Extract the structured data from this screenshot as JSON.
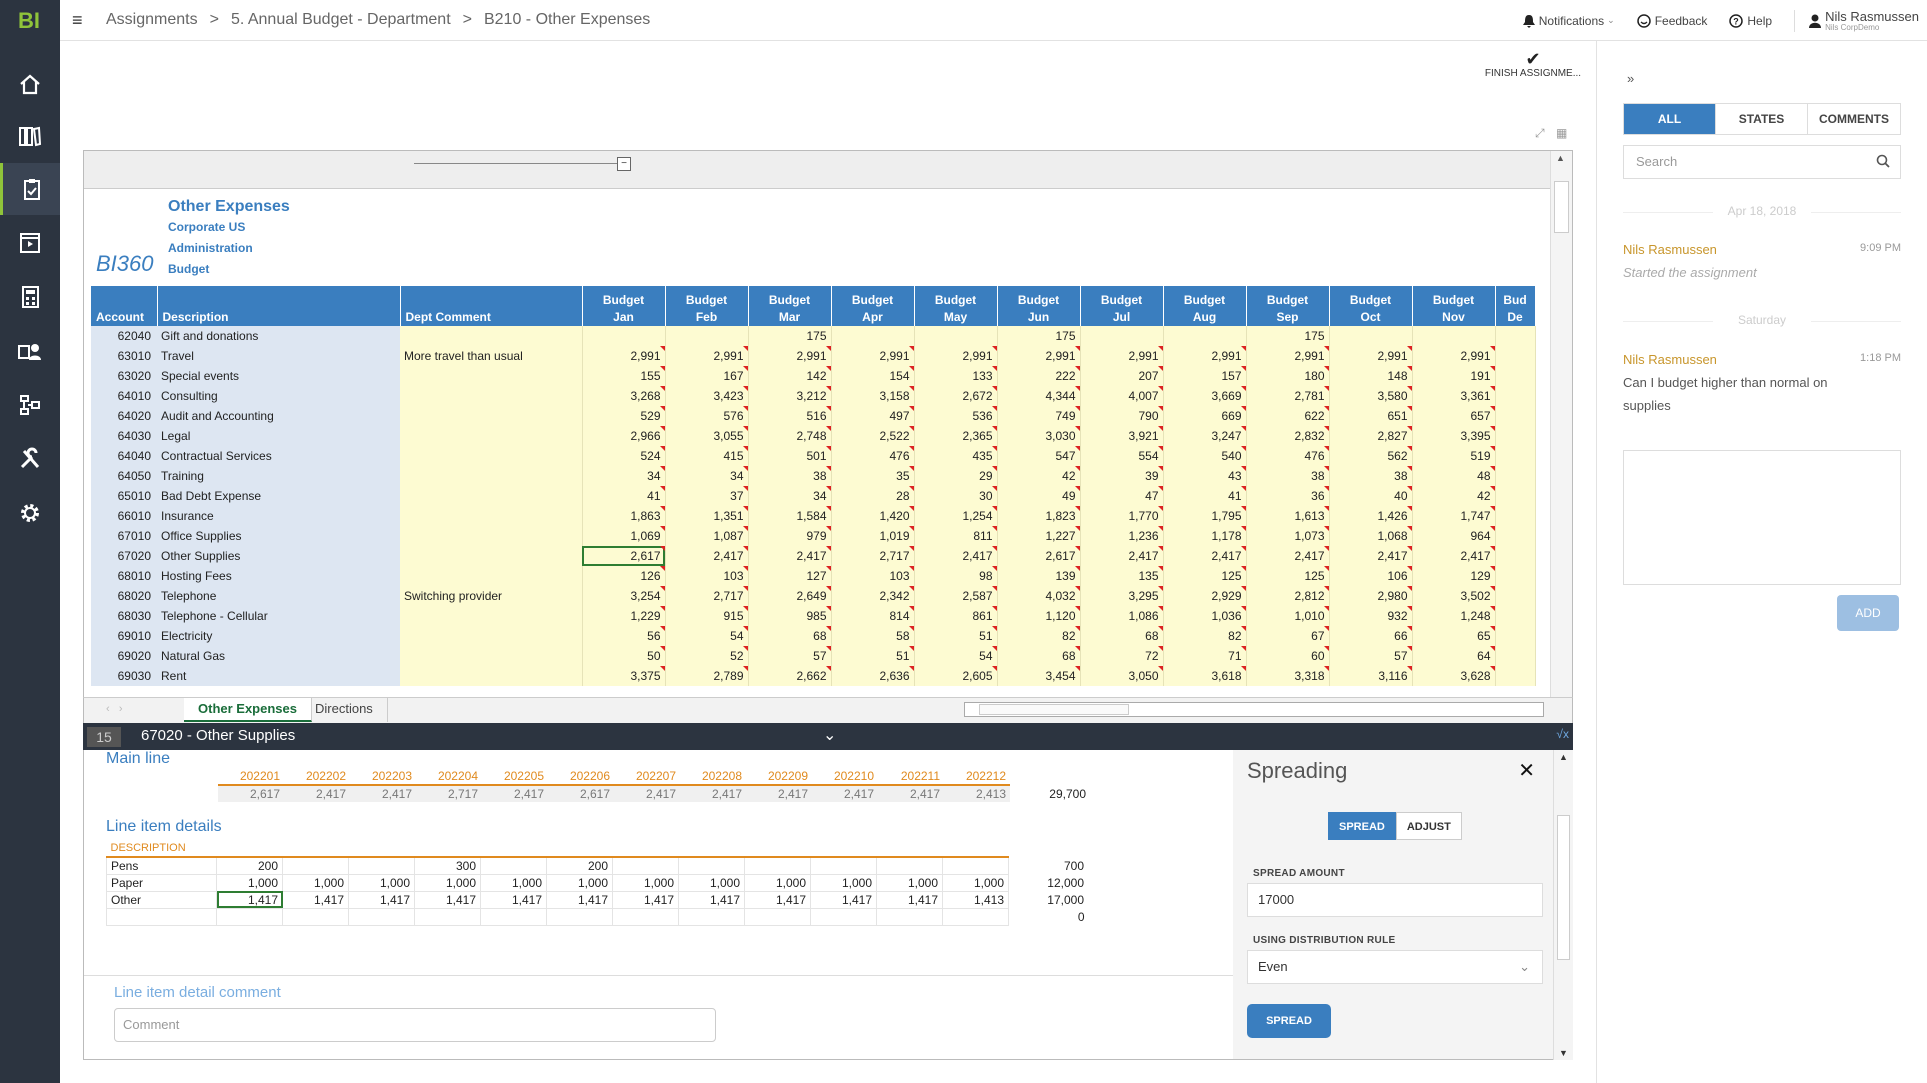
{
  "app": {
    "logo": "BI"
  },
  "topbar": {
    "breadcrumbs": [
      "Assignments",
      "5. Annual Budget - Department",
      "B210 - Other Expenses"
    ],
    "notifications": "Notifications",
    "feedback": "Feedback",
    "help": "Help",
    "user_name": "Nils Rasmussen",
    "user_company": "Nils CorpDemo"
  },
  "finish": {
    "label": "FINISH ASSIGNME..."
  },
  "report": {
    "title": "Other Expenses",
    "entity": "Corporate US",
    "department": "Administration",
    "scenario": "Budget",
    "logo_text": "BI360",
    "columns": {
      "account": "Account",
      "description": "Description",
      "comment": "Dept Comment",
      "months": [
        [
          "Budget",
          "Jan"
        ],
        [
          "Budget",
          "Feb"
        ],
        [
          "Budget",
          "Mar"
        ],
        [
          "Budget",
          "Apr"
        ],
        [
          "Budget",
          "May"
        ],
        [
          "Budget",
          "Jun"
        ],
        [
          "Budget",
          "Jul"
        ],
        [
          "Budget",
          "Aug"
        ],
        [
          "Budget",
          "Sep"
        ],
        [
          "Budget",
          "Oct"
        ],
        [
          "Budget",
          "Nov"
        ],
        [
          "Bud",
          "De"
        ]
      ]
    },
    "rows": [
      {
        "acct": "62040",
        "desc": "Gift and donations",
        "cmt": "",
        "v": [
          "",
          "",
          "175",
          "",
          "",
          "175",
          "",
          "",
          "175",
          "",
          "",
          ""
        ]
      },
      {
        "acct": "63010",
        "desc": "Travel",
        "cmt": "More travel than usual",
        "v": [
          "2,991",
          "2,991",
          "2,991",
          "2,991",
          "2,991",
          "2,991",
          "2,991",
          "2,991",
          "2,991",
          "2,991",
          "2,991",
          ""
        ]
      },
      {
        "acct": "63020",
        "desc": "Special events",
        "cmt": "",
        "v": [
          "155",
          "167",
          "142",
          "154",
          "133",
          "222",
          "207",
          "157",
          "180",
          "148",
          "191",
          ""
        ]
      },
      {
        "acct": "64010",
        "desc": "Consulting",
        "cmt": "",
        "v": [
          "3,268",
          "3,423",
          "3,212",
          "3,158",
          "2,672",
          "4,344",
          "4,007",
          "3,669",
          "2,781",
          "3,580",
          "3,361",
          ""
        ]
      },
      {
        "acct": "64020",
        "desc": "Audit and Accounting",
        "cmt": "",
        "v": [
          "529",
          "576",
          "516",
          "497",
          "536",
          "749",
          "790",
          "669",
          "622",
          "651",
          "657",
          ""
        ]
      },
      {
        "acct": "64030",
        "desc": "Legal",
        "cmt": "",
        "v": [
          "2,966",
          "3,055",
          "2,748",
          "2,522",
          "2,365",
          "3,030",
          "3,921",
          "3,247",
          "2,832",
          "2,827",
          "3,395",
          ""
        ]
      },
      {
        "acct": "64040",
        "desc": "Contractual Services",
        "cmt": "",
        "v": [
          "524",
          "415",
          "501",
          "476",
          "435",
          "547",
          "554",
          "540",
          "476",
          "562",
          "519",
          ""
        ]
      },
      {
        "acct": "64050",
        "desc": "Training",
        "cmt": "",
        "v": [
          "34",
          "34",
          "38",
          "35",
          "29",
          "42",
          "39",
          "43",
          "38",
          "38",
          "48",
          ""
        ]
      },
      {
        "acct": "65010",
        "desc": "Bad Debt Expense",
        "cmt": "",
        "v": [
          "41",
          "37",
          "34",
          "28",
          "30",
          "49",
          "47",
          "41",
          "36",
          "40",
          "42",
          ""
        ]
      },
      {
        "acct": "66010",
        "desc": "Insurance",
        "cmt": "",
        "v": [
          "1,863",
          "1,351",
          "1,584",
          "1,420",
          "1,254",
          "1,823",
          "1,770",
          "1,795",
          "1,613",
          "1,426",
          "1,747",
          ""
        ]
      },
      {
        "acct": "67010",
        "desc": "Office Supplies",
        "cmt": "",
        "v": [
          "1,069",
          "1,087",
          "979",
          "1,019",
          "811",
          "1,227",
          "1,236",
          "1,178",
          "1,073",
          "1,068",
          "964",
          ""
        ]
      },
      {
        "acct": "67020",
        "desc": "Other Supplies",
        "cmt": "",
        "v": [
          "2,617",
          "2,417",
          "2,417",
          "2,717",
          "2,417",
          "2,617",
          "2,417",
          "2,417",
          "2,417",
          "2,417",
          "2,417",
          ""
        ]
      },
      {
        "acct": "68010",
        "desc": "Hosting Fees",
        "cmt": "",
        "v": [
          "126",
          "103",
          "127",
          "103",
          "98",
          "139",
          "135",
          "125",
          "125",
          "106",
          "129",
          ""
        ]
      },
      {
        "acct": "68020",
        "desc": "Telephone",
        "cmt": "Switching provider",
        "v": [
          "3,254",
          "2,717",
          "2,649",
          "2,342",
          "2,587",
          "4,032",
          "3,295",
          "2,929",
          "2,812",
          "2,980",
          "3,502",
          ""
        ]
      },
      {
        "acct": "68030",
        "desc": "Telephone - Cellular",
        "cmt": "",
        "v": [
          "1,229",
          "915",
          "985",
          "814",
          "861",
          "1,120",
          "1,086",
          "1,036",
          "1,010",
          "932",
          "1,248",
          ""
        ]
      },
      {
        "acct": "69010",
        "desc": "Electricity",
        "cmt": "",
        "v": [
          "56",
          "54",
          "68",
          "58",
          "51",
          "82",
          "68",
          "82",
          "67",
          "66",
          "65",
          ""
        ]
      },
      {
        "acct": "69020",
        "desc": "Natural Gas",
        "cmt": "",
        "v": [
          "50",
          "52",
          "57",
          "51",
          "54",
          "68",
          "72",
          "71",
          "60",
          "57",
          "64",
          ""
        ]
      },
      {
        "acct": "69030",
        "desc": "Rent",
        "cmt": "",
        "v": [
          "3,375",
          "2,789",
          "2,662",
          "2,636",
          "2,605",
          "3,454",
          "3,050",
          "3,618",
          "3,318",
          "3,116",
          "3,628",
          ""
        ]
      }
    ]
  },
  "sheets": [
    "Other Expenses",
    "Directions"
  ],
  "detail": {
    "row_num": "15",
    "title": "67020 - Other Supplies",
    "main_line_title": "Main line",
    "periods": [
      "202201",
      "202202",
      "202203",
      "202204",
      "202205",
      "202206",
      "202207",
      "202208",
      "202209",
      "202210",
      "202211",
      "202212"
    ],
    "main_values": [
      "2,617",
      "2,417",
      "2,417",
      "2,717",
      "2,417",
      "2,617",
      "2,417",
      "2,417",
      "2,417",
      "2,417",
      "2,417",
      "2,413"
    ],
    "main_total": "29,700",
    "line_items_title": "Line item details",
    "desc_header": "DESCRIPTION",
    "items": [
      {
        "name": "Pens",
        "v": [
          "200",
          "",
          "",
          "300",
          "",
          "200",
          "",
          "",
          "",
          "",
          "",
          ""
        ],
        "total": "700"
      },
      {
        "name": "Paper",
        "v": [
          "1,000",
          "1,000",
          "1,000",
          "1,000",
          "1,000",
          "1,000",
          "1,000",
          "1,000",
          "1,000",
          "1,000",
          "1,000",
          "1,000"
        ],
        "total": "12,000"
      },
      {
        "name": "Other",
        "v": [
          "1,417",
          "1,417",
          "1,417",
          "1,417",
          "1,417",
          "1,417",
          "1,417",
          "1,417",
          "1,417",
          "1,417",
          "1,417",
          "1,413"
        ],
        "total": "17,000"
      },
      {
        "name": "",
        "v": [
          "",
          "",
          "",
          "",
          "",
          "",
          "",
          "",
          "",
          "",
          "",
          ""
        ],
        "total": "0"
      }
    ],
    "comment_label": "Line item detail comment",
    "comment_placeholder": "Comment"
  },
  "spreading": {
    "title": "Spreading",
    "spread_tab": "SPREAD",
    "adjust_tab": "ADJUST",
    "amount_label": "SPREAD AMOUNT",
    "amount_value": "17000",
    "rule_label": "USING DISTRIBUTION RULE",
    "rule_value": "Even",
    "button": "SPREAD"
  },
  "right_panel": {
    "tabs": [
      "ALL",
      "STATES",
      "COMMENTS"
    ],
    "search_placeholder": "Search",
    "date1": "Apr 18, 2018",
    "c1_name": "Nils Rasmussen",
    "c1_time": "9:09 PM",
    "c1_text": "Started the assignment",
    "date2": "Saturday",
    "c2_name": "Nils Rasmussen",
    "c2_time": "1:18 PM",
    "c2_text": "Can I budget higher than normal on supplies",
    "add": "ADD"
  }
}
